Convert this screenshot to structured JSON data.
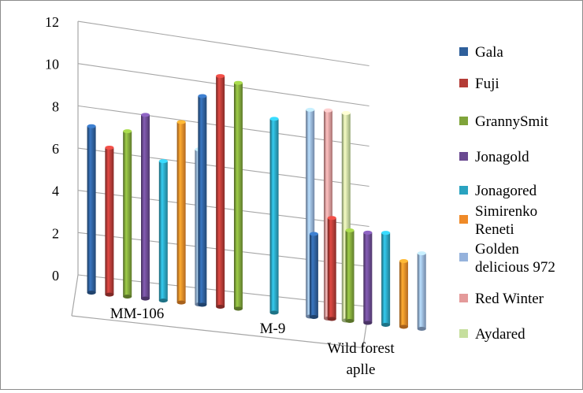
{
  "chart_data": {
    "type": "bar",
    "title": "",
    "xlabel": "",
    "ylabel": "",
    "categories": [
      "MM-106",
      "M-9",
      "Wild forest aplle"
    ],
    "ylim": [
      0,
      12
    ],
    "yticks": [
      0,
      2,
      4,
      6,
      8,
      10,
      12
    ],
    "grid": true,
    "legend_position": "right",
    "series": [
      {
        "name": "Gala",
        "color": "#2e5f9b",
        "values": [
          7.9,
          10.1,
          4.1
        ]
      },
      {
        "name": "Fuji",
        "color": "#b43b36",
        "values": [
          7.0,
          11.2,
          5.0
        ]
      },
      {
        "name": "GrannySmit",
        "color": "#7fa43a",
        "values": [
          7.9,
          11.0,
          4.5
        ]
      },
      {
        "name": "Jonagold",
        "color": "#6a4a91",
        "values": [
          8.8,
          null,
          4.5
        ]
      },
      {
        "name": "Jonagored",
        "color": "#2aa3c0",
        "values": [
          6.7,
          9.5,
          4.6
        ]
      },
      {
        "name": "Simirenko Reneti",
        "color": "#ef8a28",
        "values": [
          8.7,
          null,
          3.3
        ]
      },
      {
        "name": "Golden delicious 972",
        "color": "#95b2dc",
        "values": [
          7.5,
          10.2,
          3.8
        ]
      },
      {
        "name": "Red Winter",
        "color": "#e49a9a",
        "values": [
          null,
          10.3,
          null
        ]
      },
      {
        "name": "Aydared",
        "color": "#c6df9e",
        "values": [
          null,
          10.3,
          null
        ]
      }
    ]
  }
}
